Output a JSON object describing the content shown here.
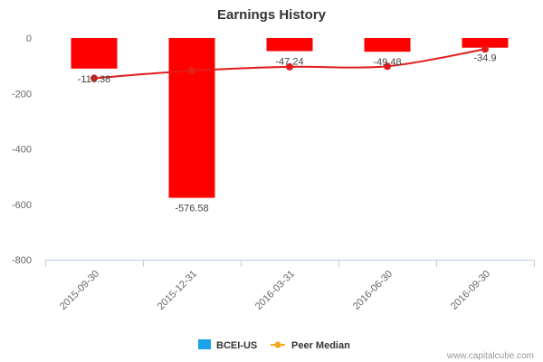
{
  "chart_data": {
    "type": "bar",
    "title": "Earnings History",
    "xlabel": "",
    "ylabel": "",
    "ylim": [
      -800,
      0
    ],
    "yticks": [
      0,
      -200,
      -400,
      -600,
      -800
    ],
    "categories": [
      "2015-09-30",
      "2015-12-31",
      "2016-03-31",
      "2016-06-30",
      "2016-09-30"
    ],
    "series": [
      {
        "name": "BCEI-US",
        "type": "bar",
        "values": [
          -110.38,
          -576.58,
          -47.24,
          -49.48,
          -34.9
        ],
        "data_labels": [
          "-110.38",
          "-576.58",
          "-47.24",
          "-49.48",
          "-34.9"
        ],
        "bar_color": "#ff0000",
        "legend_color": "#1aa3e8"
      },
      {
        "name": "Peer Median",
        "type": "line",
        "values": [
          -145,
          -118,
          -104,
          -102,
          -40
        ],
        "line_color": "#e31c1c",
        "legend_color": "#f5a623"
      }
    ],
    "legend_position": "bottom-center",
    "grid": false
  },
  "credit": "www.capitalcube.com"
}
